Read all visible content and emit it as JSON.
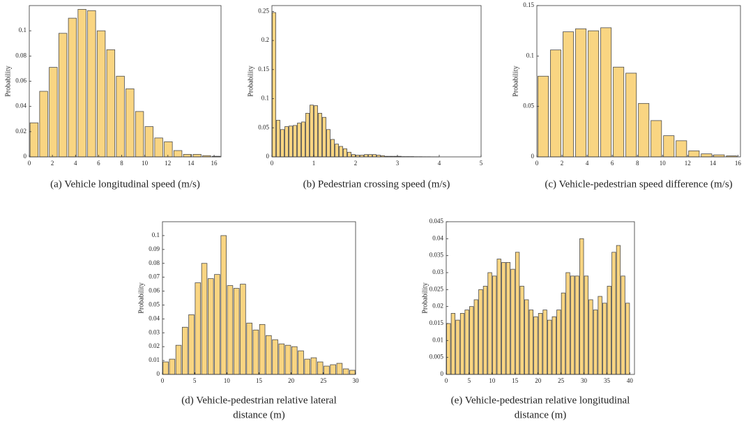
{
  "chart_data": [
    {
      "type": "histogram",
      "caption": [
        "(a) Vehicle longitudinal speed (m/s)"
      ],
      "ylabel": "Probability",
      "color": "#f9d582",
      "bins": [
        0,
        0.83,
        1.66,
        2.49,
        3.32,
        4.15,
        4.98,
        5.81,
        6.64,
        7.47,
        8.3,
        9.13,
        9.96,
        10.79,
        11.62,
        12.45,
        13.28,
        14.11,
        14.94,
        15.77,
        16.6
      ],
      "values": [
        0.027,
        0.052,
        0.071,
        0.098,
        0.11,
        0.117,
        0.116,
        0.1,
        0.085,
        0.064,
        0.054,
        0.036,
        0.024,
        0.015,
        0.012,
        0.005,
        0.002,
        0.002,
        0.001,
        0.0005
      ],
      "xlim": [
        0,
        16.6
      ],
      "xticks": [
        0,
        2,
        4,
        6,
        8,
        10,
        12,
        14,
        16
      ],
      "ylim": [
        0,
        0.12
      ],
      "yticks": [
        0,
        0.02,
        0.04,
        0.06,
        0.08,
        0.1
      ]
    },
    {
      "type": "histogram",
      "caption": [
        "(b) Pedestrian crossing speed (m/s)"
      ],
      "ylabel": "Probability",
      "color": "#f9d582",
      "bins": [
        0,
        0.1,
        0.2,
        0.3,
        0.4,
        0.5,
        0.6,
        0.7,
        0.8,
        0.9,
        1.0,
        1.1,
        1.2,
        1.3,
        1.4,
        1.5,
        1.6,
        1.7,
        1.8,
        1.9,
        2.0,
        2.1,
        2.2,
        2.3,
        2.4,
        2.5,
        2.6,
        2.7,
        2.8,
        2.9,
        3.0,
        3.1,
        3.2,
        3.3,
        3.4,
        3.5,
        3.6,
        3.7,
        3.8,
        3.9,
        4.0
      ],
      "values": [
        0.248,
        0.063,
        0.047,
        0.052,
        0.053,
        0.054,
        0.058,
        0.06,
        0.075,
        0.089,
        0.088,
        0.075,
        0.068,
        0.047,
        0.03,
        0.022,
        0.018,
        0.014,
        0.008,
        0.004,
        0.003,
        0.003,
        0.004,
        0.004,
        0.004,
        0.003,
        0.002,
        0.001,
        0.001,
        0.001,
        0.001,
        0.0005,
        0.0005,
        0.0005,
        0.0003,
        0.0003,
        0.0002,
        0.0002,
        0.0001,
        0.0001
      ],
      "xlim": [
        0,
        5
      ],
      "xticks": [
        0,
        1,
        2,
        3,
        4,
        5
      ],
      "ylim": [
        0,
        0.26
      ],
      "yticks": [
        0,
        0.05,
        0.1,
        0.15,
        0.2,
        0.25
      ]
    },
    {
      "type": "histogram",
      "caption": [
        "(c) Vehicle-pedestrian speed difference (m/s)"
      ],
      "ylabel": "Probability",
      "color": "#f9d582",
      "bins": [
        0,
        1,
        2,
        3,
        4,
        5,
        6,
        7,
        8,
        9,
        10,
        11,
        12,
        13,
        14,
        15,
        16
      ],
      "values": [
        0.08,
        0.106,
        0.124,
        0.127,
        0.125,
        0.128,
        0.089,
        0.083,
        0.053,
        0.036,
        0.021,
        0.016,
        0.006,
        0.003,
        0.002,
        0.001
      ],
      "xlim": [
        0,
        16.2
      ],
      "xticks": [
        0,
        2,
        4,
        6,
        8,
        10,
        12,
        14,
        16
      ],
      "ylim": [
        0,
        0.15
      ],
      "yticks": [
        0,
        0.05,
        0.1,
        0.15
      ]
    },
    {
      "type": "histogram",
      "caption": [
        "(d) Vehicle-pedestrian relative lateral",
        "distance (m)"
      ],
      "ylabel": "Probability",
      "color": "#f9d582",
      "bins": [
        0,
        1,
        2,
        3,
        4,
        5,
        6,
        7,
        8,
        9,
        10,
        11,
        12,
        13,
        14,
        15,
        16,
        17,
        18,
        19,
        20,
        21,
        22,
        23,
        24,
        25,
        26,
        27,
        28,
        29,
        30
      ],
      "values": [
        0.009,
        0.011,
        0.021,
        0.034,
        0.043,
        0.066,
        0.08,
        0.069,
        0.072,
        0.1,
        0.064,
        0.062,
        0.065,
        0.037,
        0.032,
        0.036,
        0.028,
        0.025,
        0.022,
        0.021,
        0.02,
        0.017,
        0.011,
        0.012,
        0.009,
        0.006,
        0.007,
        0.008,
        0.004,
        0.003
      ],
      "xlim": [
        0,
        30
      ],
      "xticks": [
        0,
        5,
        10,
        15,
        20,
        25,
        30
      ],
      "ylim": [
        0,
        0.11
      ],
      "yticks": [
        0,
        0.01,
        0.02,
        0.03,
        0.04,
        0.05,
        0.06,
        0.07,
        0.08,
        0.09,
        0.1
      ]
    },
    {
      "type": "histogram",
      "caption": [
        "(e) Vehicle-pedestrian relative longitudinal",
        "distance (m)"
      ],
      "ylabel": "Probability",
      "color": "#f9d582",
      "bins": [
        0,
        1,
        2,
        3,
        4,
        5,
        6,
        7,
        8,
        9,
        10,
        11,
        12,
        13,
        14,
        15,
        16,
        17,
        18,
        19,
        20,
        21,
        22,
        23,
        24,
        25,
        26,
        27,
        28,
        29,
        30,
        31,
        32,
        33,
        34,
        35,
        36,
        37,
        38,
        39,
        40
      ],
      "values": [
        0.015,
        0.018,
        0.016,
        0.018,
        0.019,
        0.02,
        0.022,
        0.025,
        0.026,
        0.03,
        0.029,
        0.034,
        0.033,
        0.033,
        0.031,
        0.036,
        0.026,
        0.022,
        0.019,
        0.017,
        0.018,
        0.019,
        0.016,
        0.017,
        0.019,
        0.024,
        0.03,
        0.029,
        0.029,
        0.04,
        0.029,
        0.022,
        0.019,
        0.023,
        0.021,
        0.026,
        0.036,
        0.038,
        0.029,
        0.021
      ],
      "xlim": [
        0,
        41
      ],
      "xticks": [
        0,
        5,
        10,
        15,
        20,
        25,
        30,
        35,
        40
      ],
      "ylim": [
        0,
        0.045
      ],
      "yticks": [
        0,
        0.005,
        0.01,
        0.015,
        0.02,
        0.025,
        0.03,
        0.035,
        0.04,
        0.045
      ]
    }
  ]
}
